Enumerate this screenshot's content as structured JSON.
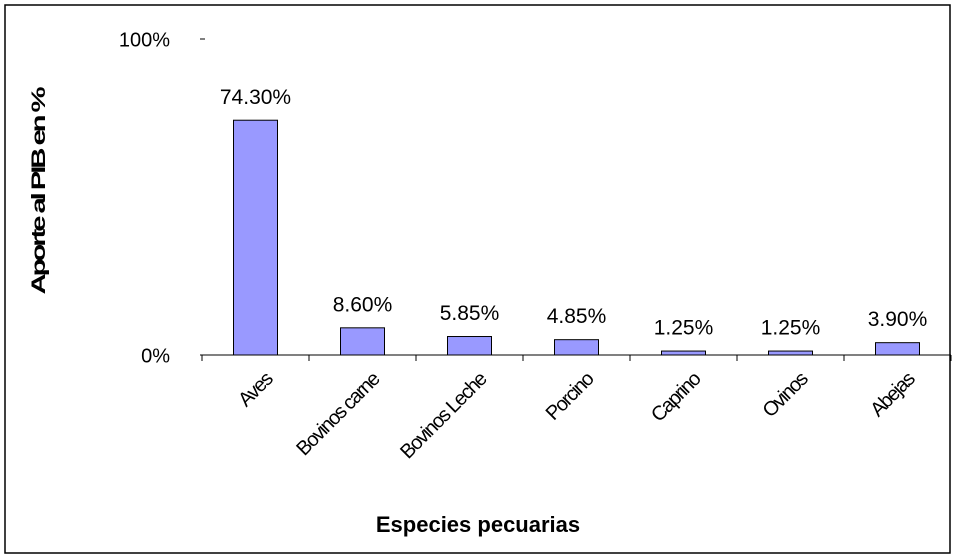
{
  "chart_data": {
    "type": "bar",
    "categories": [
      "Aves",
      "Bovinos carne",
      "Bovinos Leche",
      "Porcino",
      "Caprino",
      "Ovinos",
      "Abejas"
    ],
    "values": [
      74.3,
      8.6,
      5.85,
      4.85,
      1.25,
      1.25,
      3.9
    ],
    "value_labels": [
      "74.30%",
      "8.60%",
      "5.85%",
      "4.85%",
      "1.25%",
      "1.25%",
      "3.90%"
    ],
    "color": "#9999ff",
    "xlabel": "Especies pecuarias",
    "ylabel": "Aporte al PIB en %",
    "ylim": [
      0,
      100
    ],
    "yticks": [
      {
        "value": 0,
        "label": "0%"
      },
      {
        "value": 100,
        "label": "100%"
      }
    ]
  }
}
